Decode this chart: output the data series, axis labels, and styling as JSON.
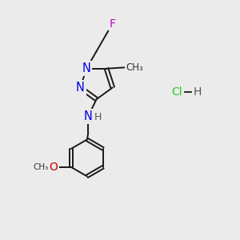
{
  "background_color": "#ebebeb",
  "bond_color": "#1a1a1a",
  "atom_colors": {
    "F": "#cc00cc",
    "N": "#0000ee",
    "O": "#cc0000",
    "H": "#555555",
    "Cl": "#22cc22",
    "C": "#1a1a1a"
  },
  "figsize": [
    3.0,
    3.0
  ],
  "dpi": 100
}
